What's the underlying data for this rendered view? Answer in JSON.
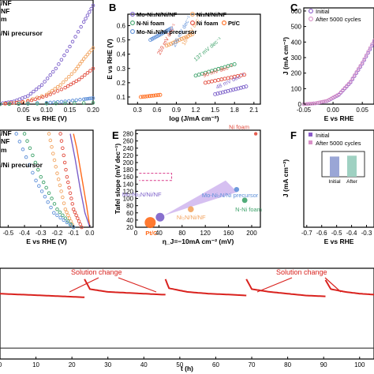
{
  "colors": {
    "mo_ni3n": "#7b5fc9",
    "ni3n": "#f2a35e",
    "n_ni": "#3fa36b",
    "ni_foam": "#e14b3d",
    "ptc": "#ff6a1a",
    "mo_ni_precursor": "#5d8fd8",
    "stability_red": "#d9221e",
    "stability_black": "#333333",
    "dashed_pink": "#d93a8a"
  },
  "chart_data": [
    {
      "panel": "A",
      "type": "line",
      "visible_label_fragments": [
        "/NF",
        "NF",
        "m",
        "/Ni precursor"
      ],
      "xlabel": "E vs RHE (V)",
      "x_ticks": [
        "0.05",
        "0.10",
        "0.15",
        "0.20"
      ],
      "xlim": [
        0.0,
        0.2
      ],
      "series": [
        {
          "key": "mo_ni3n",
          "x": [
            0.0,
            0.03,
            0.06,
            0.09,
            0.12,
            0.15,
            0.18,
            0.2
          ],
          "y": [
            2,
            10,
            30,
            70,
            130,
            210,
            300,
            360
          ]
        },
        {
          "key": "ni3n",
          "x": [
            0.0,
            0.05,
            0.1,
            0.13,
            0.16,
            0.18,
            0.2
          ],
          "y": [
            0,
            8,
            35,
            70,
            120,
            165,
            205
          ]
        },
        {
          "key": "ni_foam",
          "x": [
            0.0,
            0.06,
            0.1,
            0.14,
            0.17,
            0.2
          ],
          "y": [
            0,
            10,
            30,
            60,
            90,
            130
          ]
        },
        {
          "key": "mo_ni_precursor",
          "x": [
            0.0,
            0.1,
            0.14,
            0.18,
            0.2
          ],
          "y": [
            0,
            5,
            10,
            18,
            22
          ]
        },
        {
          "key": "n_ni",
          "x": [
            0.0,
            0.1,
            0.2
          ],
          "y": [
            0,
            2,
            5
          ]
        }
      ]
    },
    {
      "panel": "B",
      "type": "scatter",
      "title_label": "B",
      "legend": [
        {
          "key": "mo_ni3n",
          "label": "Mo-Ni₃N/Ni/NF"
        },
        {
          "key": "ni3n",
          "label": "Ni₃N/Ni/NF"
        },
        {
          "key": "n_ni",
          "label": "N-Ni foam"
        },
        {
          "key": "ni_foam",
          "label": "Ni foam"
        },
        {
          "key": "ptc",
          "label": "Pt/C"
        },
        {
          "key": "mo_ni_precursor",
          "label": "Mo-Ni₃N/Ni precursor"
        }
      ],
      "xlabel": "log (J/mA cm⁻²)",
      "ylabel": "E vs RHE (V)",
      "x_ticks": [
        "0.3",
        "0.6",
        "0.9",
        "1.2",
        "1.5",
        "1.8",
        "2.1"
      ],
      "xlim": [
        0.15,
        2.2
      ],
      "y_ticks": [
        "0.1",
        "0.2",
        "0.3",
        "0.4",
        "0.5",
        "0.6"
      ],
      "ylim": [
        0.05,
        0.68
      ],
      "annotations": [
        "48 mV dec⁻¹",
        "90 mV dec⁻¹",
        "137 mV dec⁻¹",
        "164 mV dec⁻¹",
        "206 mV dec⁻¹",
        "259 mV dec⁻¹"
      ],
      "series": [
        {
          "key": "mo_ni3n",
          "x": [
            1.5,
            1.62,
            1.74,
            1.86,
            1.98
          ],
          "y": [
            0.12,
            0.133,
            0.147,
            0.16,
            0.174
          ]
        },
        {
          "key": "ni_foam",
          "x": [
            1.35,
            1.5,
            1.65,
            1.8,
            1.95
          ],
          "y": [
            0.2,
            0.214,
            0.228,
            0.242,
            0.256
          ]
        },
        {
          "key": "n_ni",
          "x": [
            1.2,
            1.35,
            1.5,
            1.65,
            1.8
          ],
          "y": [
            0.25,
            0.27,
            0.29,
            0.31,
            0.33
          ]
        },
        {
          "key": "ni3n",
          "x": [
            0.75,
            0.85,
            0.95,
            1.05,
            1.15
          ],
          "y": [
            0.46,
            0.48,
            0.5,
            0.52,
            0.54
          ]
        },
        {
          "key": "mo_ni_precursor",
          "x": [
            0.5,
            0.58,
            0.66,
            0.74,
            0.82
          ],
          "y": [
            0.5,
            0.52,
            0.54,
            0.56,
            0.58
          ]
        },
        {
          "key": "ptc",
          "x": [
            0.35,
            0.45,
            0.55,
            0.65
          ],
          "y": [
            0.1,
            0.105,
            0.11,
            0.115
          ]
        }
      ]
    },
    {
      "panel": "C",
      "type": "line",
      "title_label": "C",
      "legend": [
        {
          "key": "initial",
          "label": "Initial"
        },
        {
          "key": "after",
          "label": "After 5000 cycles"
        }
      ],
      "xlabel": "E vs RHE",
      "ylabel": "J (mA cm⁻²)",
      "x_ticks": [
        "-0.05",
        "0.00",
        "0.05"
      ],
      "xlim": [
        -0.05,
        0.07
      ],
      "y_ticks": [
        "0",
        "100",
        "200",
        "300",
        "400",
        "500",
        "600"
      ],
      "ylim": [
        0,
        620
      ],
      "series": [
        {
          "key": "initial",
          "x": [
            -0.05,
            -0.03,
            -0.01,
            0.01,
            0.03,
            0.05,
            0.07
          ],
          "y": [
            0,
            5,
            20,
            60,
            140,
            260,
            400
          ]
        },
        {
          "key": "after",
          "x": [
            -0.05,
            -0.03,
            -0.01,
            0.01,
            0.03,
            0.05,
            0.07
          ],
          "y": [
            0,
            6,
            22,
            64,
            146,
            268,
            410
          ]
        }
      ]
    },
    {
      "panel": "D",
      "type": "line",
      "visible_label_fragments": [
        "/NF",
        "NF",
        "m",
        "/Ni precursor"
      ],
      "xlabel": "E vs RHE (V)",
      "x_ticks": [
        "-0.5",
        "-0.4",
        "-0.3",
        "-0.2",
        "-0.1",
        "0.0"
      ],
      "xlim": [
        -0.55,
        0.02
      ],
      "series": [
        {
          "key": "ptc",
          "x": [
            0.0,
            -0.02,
            -0.05,
            -0.08,
            -0.1
          ],
          "y": [
            0,
            60,
            140,
            220,
            260
          ]
        },
        {
          "key": "mo_ni3n",
          "x": [
            0.0,
            -0.03,
            -0.06,
            -0.09,
            -0.12
          ],
          "y": [
            0,
            40,
            110,
            190,
            260
          ]
        },
        {
          "key": "ni_foam",
          "x": [
            -0.05,
            -0.1,
            -0.14,
            -0.18
          ],
          "y": [
            0,
            50,
            140,
            260
          ]
        },
        {
          "key": "ni3n",
          "x": [
            -0.1,
            -0.15,
            -0.2,
            -0.25
          ],
          "y": [
            0,
            50,
            150,
            260
          ]
        },
        {
          "key": "n_ni",
          "x": [
            -0.1,
            -0.2,
            -0.3,
            -0.4
          ],
          "y": [
            0,
            50,
            140,
            260
          ]
        },
        {
          "key": "mo_ni_precursor",
          "x": [
            -0.1,
            -0.22,
            -0.33,
            -0.45
          ],
          "y": [
            0,
            40,
            130,
            260
          ]
        }
      ]
    },
    {
      "panel": "E",
      "type": "scatter",
      "title_label": "E",
      "xlabel": "η_J=−10mA cm⁻² (mV)",
      "ylabel": "Tafel slope (mV dec⁻¹)",
      "x_ticks": [
        "0",
        "40",
        "80",
        "120",
        "160",
        "200"
      ],
      "xlim": [
        0,
        215
      ],
      "y_ticks": [
        "20",
        "40",
        "60",
        "80",
        "100",
        "120",
        "140",
        "160",
        "180",
        "200",
        "220",
        "240",
        "260",
        "280"
      ],
      "ylim": [
        20,
        290
      ],
      "points": [
        {
          "key": "ni_foam",
          "label": "Ni foam",
          "x": 207,
          "y": 280
        },
        {
          "key": "mo_ni_precursor",
          "label": "Mo-Ni₃N/Ni precursor",
          "x": 174,
          "y": 125
        },
        {
          "key": "n_ni",
          "label": "N-Ni foam",
          "x": 188,
          "y": 95
        },
        {
          "key": "ni3n",
          "label": "Ni₃N/Ni/NF",
          "x": 95,
          "y": 70
        },
        {
          "key": "mo_ni3n",
          "label": "Mo-Ni₃N/Ni/NF",
          "x": 42,
          "y": 48
        },
        {
          "key": "ptc",
          "label": "Pt/C",
          "x": 25,
          "y": 33
        }
      ]
    },
    {
      "panel": "F",
      "type": "line",
      "title_label": "F",
      "legend": [
        {
          "key": "initial",
          "label": "Initial"
        },
        {
          "key": "after",
          "label": "After 5000 cycles"
        }
      ],
      "xlabel": "E vs RHE",
      "ylabel": "J (mA cm⁻²)",
      "x_ticks": [
        "-0.7",
        "-0.6",
        "-0.5",
        "-0.4",
        "-0.3"
      ],
      "xlim": [
        -0.72,
        -0.25
      ],
      "inset": {
        "categories": [
          "Initial",
          "After"
        ],
        "values": [
          48,
          50
        ]
      },
      "series": []
    },
    {
      "panel": "G",
      "type": "line",
      "xlabel": "t (h)",
      "x_ticks": [
        "0",
        "10",
        "20",
        "30",
        "40",
        "50",
        "60",
        "70",
        "80",
        "90",
        "100"
      ],
      "xlim": [
        0,
        104
      ],
      "annotations": [
        "Solution change",
        "Solution change"
      ],
      "series": [
        {
          "key": "stability_red",
          "segments": [
            {
              "x": [
                0,
                6,
                12,
                18,
                23.5
              ],
              "y": [
                0.72,
                0.71,
                0.7,
                0.69,
                0.68
              ]
            },
            {
              "x": [
                23.5,
                25,
                30,
                35,
                40,
                45,
                46
              ],
              "y": [
                0.88,
                0.77,
                0.74,
                0.73,
                0.72,
                0.71,
                0.71
              ]
            },
            {
              "x": [
                46,
                47,
                52,
                58,
                64,
                68.5
              ],
              "y": [
                0.88,
                0.78,
                0.74,
                0.72,
                0.71,
                0.7
              ]
            },
            {
              "x": [
                68.5,
                70,
                75,
                80,
                85,
                90.5
              ],
              "y": [
                0.88,
                0.77,
                0.74,
                0.72,
                0.7,
                0.69
              ]
            },
            {
              "x": [
                90.5,
                92,
                96,
                100,
                104
              ],
              "y": [
                0.87,
                0.77,
                0.74,
                0.72,
                0.71
              ]
            }
          ]
        },
        {
          "key": "stability_black",
          "segments": [
            {
              "x": [
                0,
                104
              ],
              "y": [
                0.12,
                0.12
              ]
            }
          ]
        }
      ]
    }
  ]
}
